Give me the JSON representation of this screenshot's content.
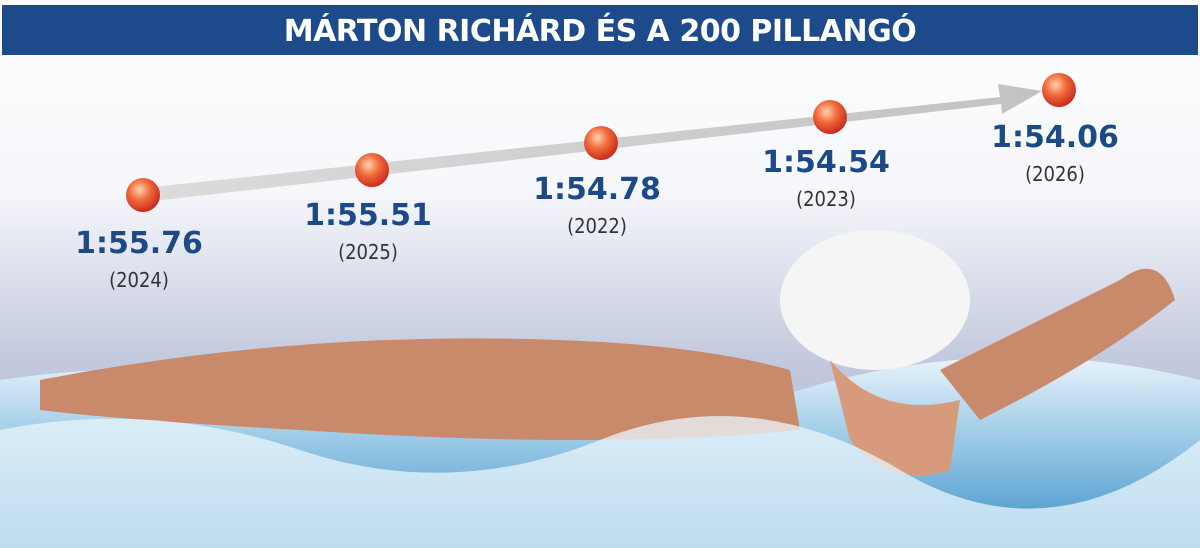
{
  "title": "MÁRTON RICHÁRD ÉS A 200 PILLANGÓ",
  "milestones": [
    {
      "time": "1:55.76",
      "year": "(2024)"
    },
    {
      "time": "1:55.51",
      "year": "(2025)"
    },
    {
      "time": "1:54.78",
      "year": "(2022)"
    },
    {
      "time": "1:54.54",
      "year": "(2023)"
    },
    {
      "time": "1:54.06",
      "year": "(2026)"
    }
  ]
}
